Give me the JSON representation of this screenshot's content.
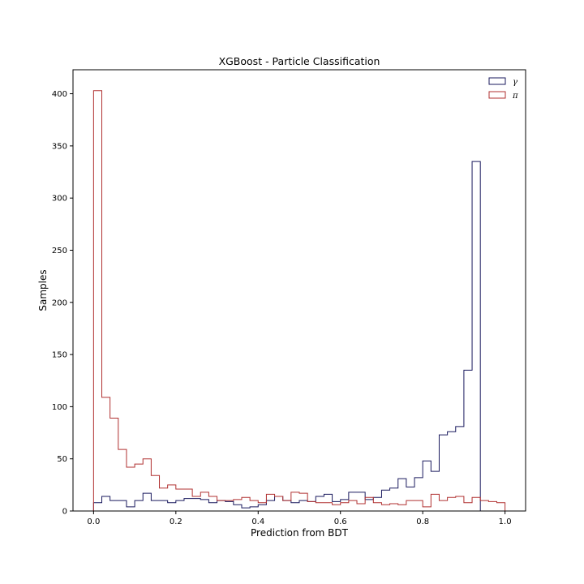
{
  "chart_data": {
    "type": "histogram",
    "title": "XGBoost - Particle Classification",
    "xlabel": "Prediction from BDT",
    "ylabel": "Samples",
    "xlim": [
      -0.05,
      1.05
    ],
    "ylim": [
      0,
      423
    ],
    "xticks": [
      "0.0",
      "0.2",
      "0.4",
      "0.6",
      "0.8",
      "1.0"
    ],
    "yticks": [
      "0",
      "50",
      "100",
      "150",
      "200",
      "250",
      "300",
      "350",
      "400"
    ],
    "grid": false,
    "legend_position": "top-right",
    "bins": 50,
    "bin_range": [
      0,
      1
    ],
    "series": [
      {
        "name": "γ",
        "color": "#1a1a5e",
        "values": [
          8,
          14,
          10,
          10,
          4,
          10,
          17,
          10,
          10,
          8,
          10,
          12,
          12,
          11,
          8,
          10,
          9,
          6,
          3,
          4,
          6,
          10,
          14,
          10,
          8,
          10,
          9,
          14,
          16,
          9,
          11,
          18,
          18,
          11,
          13,
          20,
          22,
          31,
          23,
          32,
          48,
          38,
          73,
          76,
          81,
          135,
          335,
          0,
          0,
          0
        ]
      },
      {
        "name": "π",
        "color": "#b03030",
        "values": [
          403,
          109,
          89,
          59,
          42,
          45,
          50,
          34,
          22,
          25,
          21,
          21,
          14,
          18,
          14,
          10,
          10,
          11,
          13,
          10,
          8,
          16,
          14,
          10,
          18,
          17,
          9,
          8,
          8,
          6,
          8,
          10,
          7,
          13,
          8,
          6,
          7,
          6,
          10,
          10,
          4,
          16,
          10,
          13,
          14,
          8,
          13,
          10,
          9,
          8
        ]
      }
    ]
  }
}
